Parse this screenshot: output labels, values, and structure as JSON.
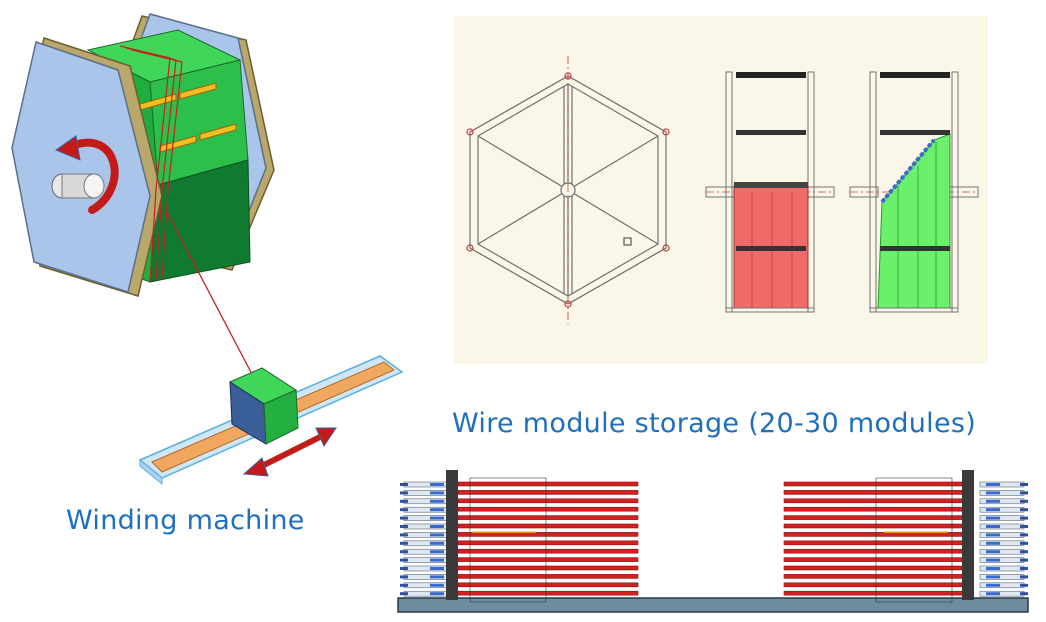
{
  "captions": {
    "storage": "Wire module storage (20-30 modules)",
    "winding": "Winding machine"
  },
  "colors": {
    "caption": "#1f6fbf",
    "frame_blue": "#a9c6ea",
    "module_green": "#1fae3e",
    "wire_red": "#d42020",
    "drawing_bg": "#fbf7e8",
    "rail_orange": "#f0a860",
    "base_gray": "#6f8ba0"
  },
  "icons": {
    "rotation": "curved-arrow-icon",
    "translation": "double-arrow-icon"
  }
}
